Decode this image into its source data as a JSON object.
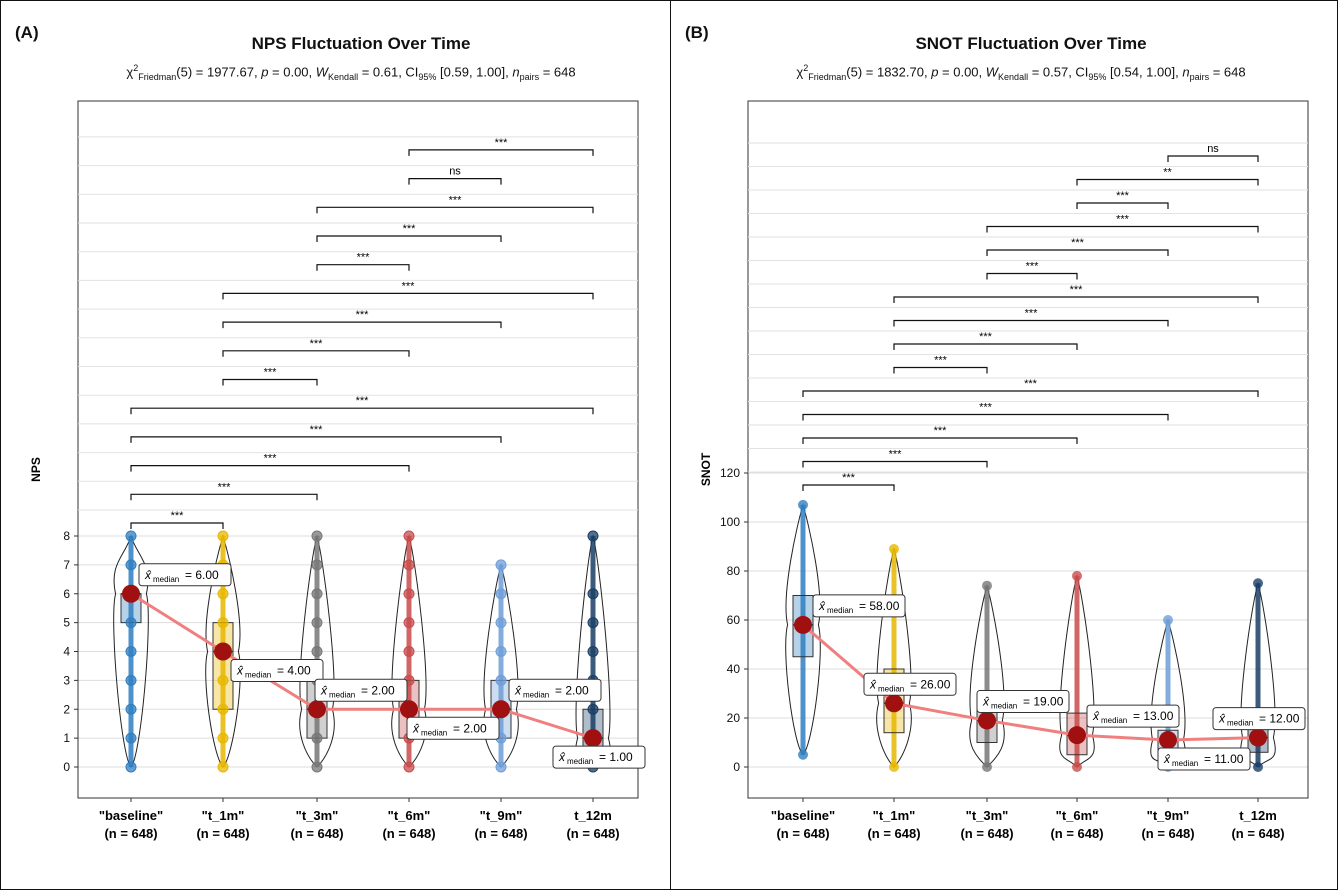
{
  "chart_data": [
    {
      "panel_label": "(A)",
      "type": "violin-box",
      "title": "NPS Fluctuation Over Time",
      "subtitle": {
        "prefix": "χ",
        "prefix_sub": "Friedman",
        "prefix_sup": "2",
        "stat": "(5) = 1977.67, ",
        "p_label": "p",
        "p_text": " = 0.00, ",
        "w_label": "W",
        "w_sub": "Kendall",
        "w_text": " = 0.61, CI",
        "ci_sub": "95%",
        "ci_text": " [0.59, 1.00], ",
        "n_label": "n",
        "n_sub": "pairs",
        "n_text": " = 648"
      },
      "ylabel": "NPS",
      "ylim": [
        0,
        8
      ],
      "yticks": [
        "0",
        "1",
        "2",
        "3",
        "4",
        "5",
        "6",
        "7",
        "8"
      ],
      "categories": [
        "\"baseline\"",
        "\"t_1m\"",
        "\"t_3m\"",
        "\"t_6m\"",
        "\"t_9m\"",
        "t_12m"
      ],
      "n_labels": [
        "(n = 648)",
        "(n = 648)",
        "(n = 648)",
        "(n = 648)",
        "(n = 648)",
        "(n = 648)"
      ],
      "colors": [
        "#2f7fc1",
        "#e7b800",
        "#777777",
        "#c84c4c",
        "#6f9fd8",
        "#1b3f66"
      ],
      "medians": [
        6,
        4,
        2,
        2,
        2,
        1
      ],
      "median_labels": [
        "= 6.00",
        "= 4.00",
        "= 2.00",
        "= 2.00",
        "= 2.00",
        "= 1.00"
      ],
      "median_word": "median",
      "quartiles": [
        [
          5,
          6
        ],
        [
          2,
          5
        ],
        [
          1,
          3
        ],
        [
          1,
          3
        ],
        [
          1,
          3
        ],
        [
          0,
          2
        ]
      ],
      "points": [
        [
          0,
          1,
          2,
          3,
          4,
          5,
          6,
          7,
          8
        ],
        [
          0,
          1,
          2,
          3,
          4,
          5,
          6,
          7,
          8
        ],
        [
          0,
          1,
          2,
          3,
          4,
          5,
          6,
          7,
          8
        ],
        [
          0,
          1,
          2,
          3,
          4,
          5,
          6,
          7,
          8
        ],
        [
          0,
          1,
          2,
          3,
          4,
          5,
          6,
          7
        ],
        [
          0,
          1,
          2,
          3,
          4,
          5,
          6,
          8
        ]
      ],
      "comparisons": [
        {
          "from": 0,
          "to": 1,
          "label": "***"
        },
        {
          "from": 0,
          "to": 2,
          "label": "***"
        },
        {
          "from": 0,
          "to": 3,
          "label": "***"
        },
        {
          "from": 0,
          "to": 4,
          "label": "***"
        },
        {
          "from": 0,
          "to": 5,
          "label": "***"
        },
        {
          "from": 1,
          "to": 2,
          "label": "***"
        },
        {
          "from": 1,
          "to": 3,
          "label": "***"
        },
        {
          "from": 1,
          "to": 4,
          "label": "***"
        },
        {
          "from": 1,
          "to": 5,
          "label": "***"
        },
        {
          "from": 2,
          "to": 3,
          "label": "***"
        },
        {
          "from": 2,
          "to": 4,
          "label": "***"
        },
        {
          "from": 2,
          "to": 5,
          "label": "***"
        },
        {
          "from": 3,
          "to": 4,
          "label": "ns"
        },
        {
          "from": 3,
          "to": 5,
          "label": "***"
        }
      ]
    },
    {
      "panel_label": "(B)",
      "type": "violin-box",
      "title": "SNOT Fluctuation Over Time",
      "subtitle": {
        "prefix": "χ",
        "prefix_sub": "Friedman",
        "prefix_sup": "2",
        "stat": "(5) = 1832.70, ",
        "p_label": "p",
        "p_text": " = 0.00, ",
        "w_label": "W",
        "w_sub": "Kendall",
        "w_text": " = 0.57, CI",
        "ci_sub": "95%",
        "ci_text": " [0.54, 1.00], ",
        "n_label": "n",
        "n_sub": "pairs",
        "n_text": " = 648"
      },
      "ylabel": "SNOT",
      "ylim": [
        0,
        120
      ],
      "yticks": [
        "0",
        "20",
        "40",
        "60",
        "80",
        "100",
        "120"
      ],
      "categories": [
        "\"baseline\"",
        "\"t_1m\"",
        "\"t_3m\"",
        "\"t_6m\"",
        "\"t_9m\"",
        "t_12m"
      ],
      "n_labels": [
        "(n = 648)",
        "(n = 648)",
        "(n = 648)",
        "(n = 648)",
        "(n = 648)",
        "(n = 648)"
      ],
      "colors": [
        "#2f7fc1",
        "#e7b800",
        "#777777",
        "#c84c4c",
        "#6f9fd8",
        "#1b3f66"
      ],
      "medians": [
        58,
        26,
        19,
        13,
        11,
        12
      ],
      "median_labels": [
        "= 58.00",
        "= 26.00",
        "= 19.00",
        "= 13.00",
        "= 11.00",
        "= 12.00"
      ],
      "median_word": "median",
      "quartiles": [
        [
          45,
          70
        ],
        [
          14,
          40
        ],
        [
          10,
          30
        ],
        [
          5,
          22
        ],
        [
          6,
          15
        ],
        [
          6,
          20
        ]
      ],
      "ranges": [
        [
          5,
          107
        ],
        [
          0,
          89
        ],
        [
          0,
          74
        ],
        [
          0,
          78
        ],
        [
          0,
          60
        ],
        [
          0,
          75
        ]
      ],
      "comparisons": [
        {
          "from": 0,
          "to": 1,
          "label": "***"
        },
        {
          "from": 0,
          "to": 2,
          "label": "***"
        },
        {
          "from": 0,
          "to": 3,
          "label": "***"
        },
        {
          "from": 0,
          "to": 4,
          "label": "***"
        },
        {
          "from": 0,
          "to": 5,
          "label": "***"
        },
        {
          "from": 1,
          "to": 2,
          "label": "***"
        },
        {
          "from": 1,
          "to": 3,
          "label": "***"
        },
        {
          "from": 1,
          "to": 4,
          "label": "***"
        },
        {
          "from": 1,
          "to": 5,
          "label": "***"
        },
        {
          "from": 2,
          "to": 3,
          "label": "***"
        },
        {
          "from": 2,
          "to": 4,
          "label": "***"
        },
        {
          "from": 2,
          "to": 5,
          "label": "***"
        },
        {
          "from": 3,
          "to": 4,
          "label": "***"
        },
        {
          "from": 3,
          "to": 5,
          "label": "**"
        },
        {
          "from": 4,
          "to": 5,
          "label": "ns"
        }
      ]
    }
  ]
}
